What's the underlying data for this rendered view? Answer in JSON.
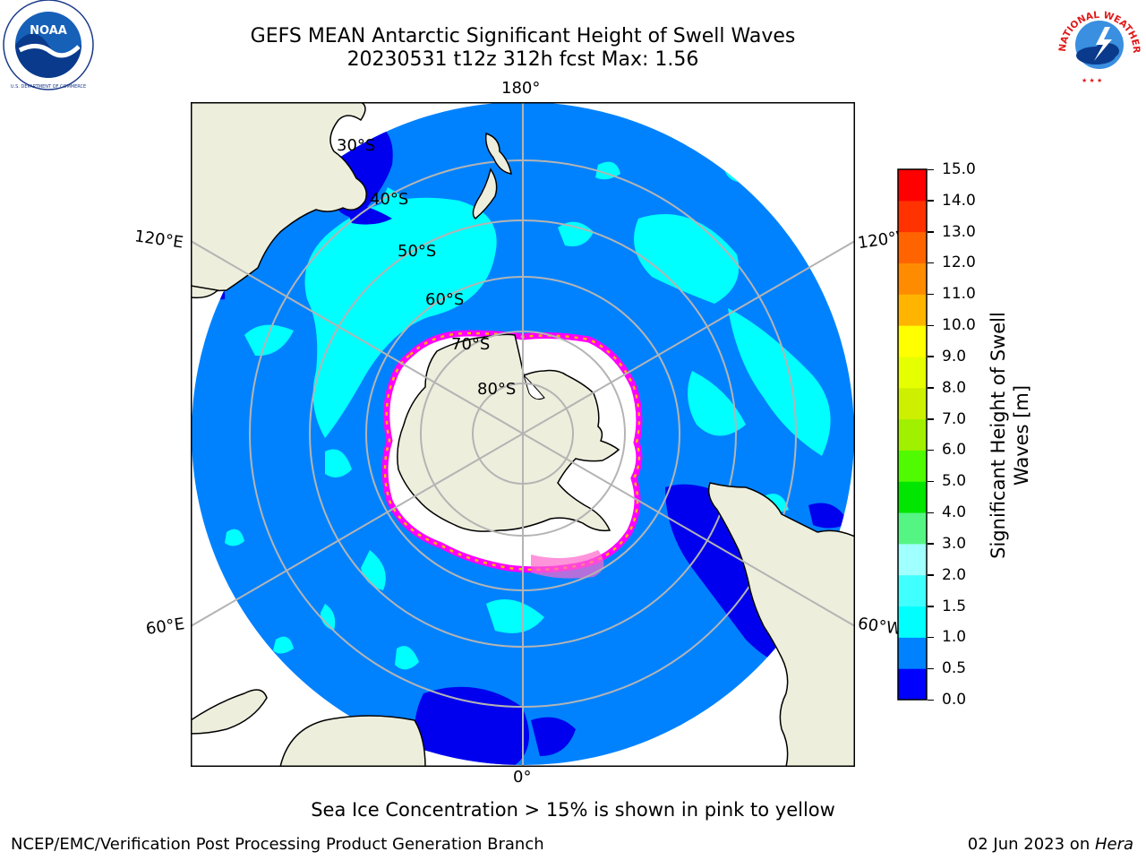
{
  "header": {
    "title_line1": "GEFS MEAN Antarctic Significant Height of Swell Waves",
    "title_line2": "20230531 t12z 312h fcst   Max: 1.56"
  },
  "logos": {
    "noaa_text": "NOAA",
    "noaa_ring_text": "NATIONAL OCEANIC AND ATMOSPHERIC ADMINISTRATION · U.S. DEPARTMENT OF COMMERCE",
    "nws_ring_text": "NATIONAL WEATHER SERVICE"
  },
  "map": {
    "projection": "south-polar-stereographic",
    "longitude_labels": {
      "top": "180°",
      "bottom": "0°",
      "upper_left": "120°E",
      "upper_right": "120°W",
      "lower_left": "60°E",
      "lower_right": "60°W"
    },
    "latitude_labels": [
      "30°S",
      "40°S",
      "50°S",
      "60°S",
      "70°S",
      "80°S"
    ]
  },
  "colorbar": {
    "label": "Significant Height of Swell Waves [m]",
    "label_line1": "Significant Height of Swell",
    "label_line2": "Waves [m]",
    "ticks": [
      "0.0",
      "0.5",
      "1.0",
      "1.5",
      "2.0",
      "3.0",
      "4.0",
      "5.0",
      "6.0",
      "7.0",
      "8.0",
      "9.0",
      "10.0",
      "11.0",
      "12.0",
      "13.0",
      "14.0",
      "15.0"
    ],
    "colors": [
      "#0000ff",
      "#0082ff",
      "#00ffff",
      "#40ffff",
      "#a0ffff",
      "#55f584",
      "#00e600",
      "#50fa00",
      "#a0f000",
      "#ccf000",
      "#e6ff00",
      "#ffff00",
      "#ffb400",
      "#ff8c00",
      "#ff6400",
      "#ff3200",
      "#ff0000"
    ]
  },
  "colors": {
    "ocean_low": "#0000ee",
    "ocean_mid": "#0082ff",
    "ocean_high": "#00ffff",
    "land": "#eeeedd",
    "sea_ice": "#ffffff",
    "ice_edge": "#ff00ff"
  },
  "max_value": 1.56,
  "subtitle": "Sea Ice Concentration > 15% is shown in pink to yellow",
  "footer": {
    "left": "NCEP/EMC/Verification Post Processing Product Generation Branch",
    "right_date": "02 Jun 2023 on ",
    "right_host": "Hera"
  }
}
